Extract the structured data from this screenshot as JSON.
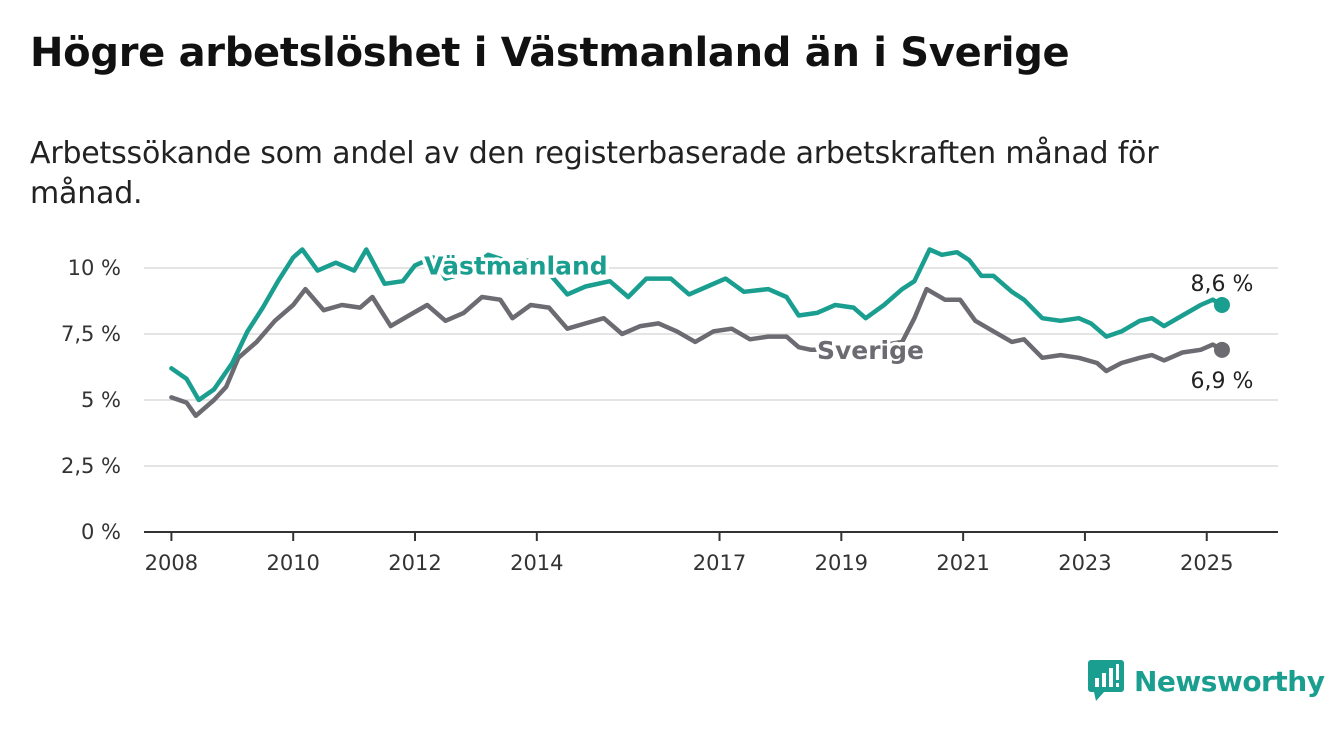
{
  "title": "Högre arbetslöshet i Västmanland än i Sverige",
  "subtitle": "Arbetssökande som andel av den registerbaserade arbetskraften månad för månad.",
  "brand": {
    "name": "Newsworthy",
    "color": "#1a9e8f",
    "icon": "bar-chart-logo-icon"
  },
  "chart_data": {
    "type": "line",
    "title": "Högre arbetslöshet i Västmanland än i Sverige",
    "subtitle": "Arbetssökande som andel av den registerbaserade arbetskraften månad för månad.",
    "xlabel": "",
    "ylabel": "",
    "xlim": [
      2007.55,
      2026.17
    ],
    "ylim": [
      0,
      10
    ],
    "x_ticks": [
      2008,
      2010,
      2012,
      2014,
      2017,
      2019,
      2021,
      2023,
      2025
    ],
    "y_ticks": [
      {
        "value": 0,
        "label": "0 %"
      },
      {
        "value": 2.5,
        "label": "2,5 %"
      },
      {
        "value": 5,
        "label": "5 %"
      },
      {
        "value": 7.5,
        "label": "7,5 %"
      },
      {
        "value": 10,
        "label": "10 %"
      }
    ],
    "grid": true,
    "series": [
      {
        "name": "Västmanland",
        "color": "#1a9e8f",
        "end_label": "8,6 %",
        "points": [
          [
            2008.0,
            6.2
          ],
          [
            2008.25,
            5.8
          ],
          [
            2008.45,
            5.0
          ],
          [
            2008.7,
            5.4
          ],
          [
            2009.0,
            6.4
          ],
          [
            2009.25,
            7.6
          ],
          [
            2009.5,
            8.5
          ],
          [
            2009.75,
            9.5
          ],
          [
            2010.0,
            10.4
          ],
          [
            2010.15,
            10.7
          ],
          [
            2010.4,
            9.9
          ],
          [
            2010.7,
            10.2
          ],
          [
            2011.0,
            9.9
          ],
          [
            2011.2,
            10.7
          ],
          [
            2011.5,
            9.4
          ],
          [
            2011.8,
            9.5
          ],
          [
            2012.0,
            10.1
          ],
          [
            2012.3,
            10.4
          ],
          [
            2012.5,
            9.6
          ],
          [
            2012.8,
            9.8
          ],
          [
            2013.2,
            10.5
          ],
          [
            2013.6,
            10.2
          ],
          [
            2013.9,
            10.3
          ],
          [
            2014.2,
            9.8
          ],
          [
            2014.5,
            9.0
          ],
          [
            2014.8,
            9.3
          ],
          [
            2015.2,
            9.5
          ],
          [
            2015.5,
            8.9
          ],
          [
            2015.8,
            9.6
          ],
          [
            2016.2,
            9.6
          ],
          [
            2016.5,
            9.0
          ],
          [
            2016.8,
            9.3
          ],
          [
            2017.1,
            9.6
          ],
          [
            2017.4,
            9.1
          ],
          [
            2017.8,
            9.2
          ],
          [
            2018.1,
            8.9
          ],
          [
            2018.3,
            8.2
          ],
          [
            2018.6,
            8.3
          ],
          [
            2018.9,
            8.6
          ],
          [
            2019.2,
            8.5
          ],
          [
            2019.4,
            8.1
          ],
          [
            2019.7,
            8.6
          ],
          [
            2020.0,
            9.2
          ],
          [
            2020.2,
            9.5
          ],
          [
            2020.45,
            10.7
          ],
          [
            2020.65,
            10.5
          ],
          [
            2020.9,
            10.6
          ],
          [
            2021.1,
            10.3
          ],
          [
            2021.3,
            9.7
          ],
          [
            2021.5,
            9.7
          ],
          [
            2021.8,
            9.1
          ],
          [
            2022.0,
            8.8
          ],
          [
            2022.3,
            8.1
          ],
          [
            2022.6,
            8.0
          ],
          [
            2022.9,
            8.1
          ],
          [
            2023.1,
            7.9
          ],
          [
            2023.35,
            7.4
          ],
          [
            2023.6,
            7.6
          ],
          [
            2023.9,
            8.0
          ],
          [
            2024.1,
            8.1
          ],
          [
            2024.3,
            7.8
          ],
          [
            2024.6,
            8.2
          ],
          [
            2024.9,
            8.6
          ],
          [
            2025.1,
            8.8
          ],
          [
            2025.25,
            8.6
          ]
        ]
      },
      {
        "name": "Sverige",
        "color": "#6d6b72",
        "end_label": "6,9 %",
        "points": [
          [
            2008.0,
            5.1
          ],
          [
            2008.25,
            4.9
          ],
          [
            2008.4,
            4.4
          ],
          [
            2008.7,
            5.0
          ],
          [
            2008.9,
            5.5
          ],
          [
            2009.1,
            6.6
          ],
          [
            2009.4,
            7.2
          ],
          [
            2009.7,
            8.0
          ],
          [
            2010.0,
            8.6
          ],
          [
            2010.2,
            9.2
          ],
          [
            2010.5,
            8.4
          ],
          [
            2010.8,
            8.6
          ],
          [
            2011.1,
            8.5
          ],
          [
            2011.3,
            8.9
          ],
          [
            2011.6,
            7.8
          ],
          [
            2011.9,
            8.2
          ],
          [
            2012.2,
            8.6
          ],
          [
            2012.5,
            8.0
          ],
          [
            2012.8,
            8.3
          ],
          [
            2013.1,
            8.9
          ],
          [
            2013.4,
            8.8
          ],
          [
            2013.6,
            8.1
          ],
          [
            2013.9,
            8.6
          ],
          [
            2014.2,
            8.5
          ],
          [
            2014.5,
            7.7
          ],
          [
            2014.8,
            7.9
          ],
          [
            2015.1,
            8.1
          ],
          [
            2015.4,
            7.5
          ],
          [
            2015.7,
            7.8
          ],
          [
            2016.0,
            7.9
          ],
          [
            2016.3,
            7.6
          ],
          [
            2016.6,
            7.2
          ],
          [
            2016.9,
            7.6
          ],
          [
            2017.2,
            7.7
          ],
          [
            2017.5,
            7.3
          ],
          [
            2017.8,
            7.4
          ],
          [
            2018.1,
            7.4
          ],
          [
            2018.3,
            7.0
          ],
          [
            2018.5,
            6.9
          ],
          [
            2019.0,
            6.9
          ],
          [
            2019.5,
            7.0
          ],
          [
            2020.0,
            7.2
          ],
          [
            2020.2,
            8.1
          ],
          [
            2020.4,
            9.2
          ],
          [
            2020.7,
            8.8
          ],
          [
            2020.95,
            8.8
          ],
          [
            2021.2,
            8.0
          ],
          [
            2021.5,
            7.6
          ],
          [
            2021.8,
            7.2
          ],
          [
            2022.0,
            7.3
          ],
          [
            2022.3,
            6.6
          ],
          [
            2022.6,
            6.7
          ],
          [
            2022.9,
            6.6
          ],
          [
            2023.2,
            6.4
          ],
          [
            2023.35,
            6.1
          ],
          [
            2023.6,
            6.4
          ],
          [
            2023.9,
            6.6
          ],
          [
            2024.1,
            6.7
          ],
          [
            2024.3,
            6.5
          ],
          [
            2024.6,
            6.8
          ],
          [
            2024.9,
            6.9
          ],
          [
            2025.1,
            7.1
          ],
          [
            2025.25,
            6.9
          ]
        ]
      }
    ]
  }
}
